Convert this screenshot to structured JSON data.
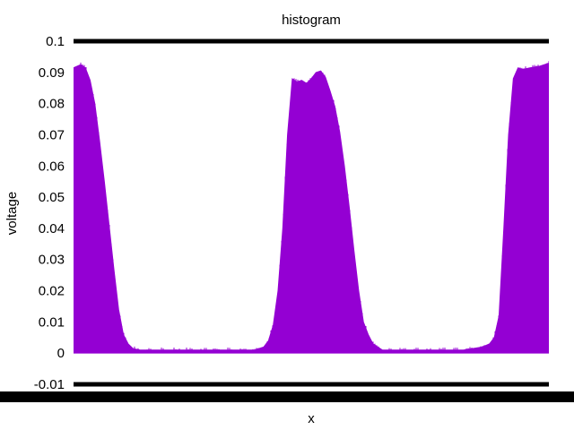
{
  "chart_data": {
    "type": "area",
    "title": "histogram",
    "xlabel": "x",
    "ylabel": "voltage",
    "ylim": [
      -0.01,
      0.1
    ],
    "xlim": [
      0,
      1
    ],
    "y_ticks": [
      "-0.01",
      "0",
      "0.01",
      "0.02",
      "0.03",
      "0.04",
      "0.05",
      "0.06",
      "0.07",
      "0.08",
      "0.09",
      "0.1"
    ],
    "grid": false,
    "legend": "none",
    "series": [
      {
        "color": "#9400d3",
        "x": [
          0.0,
          0.015,
          0.025,
          0.035,
          0.045,
          0.055,
          0.065,
          0.075,
          0.085,
          0.095,
          0.105,
          0.115,
          0.125,
          0.14,
          0.16,
          0.2,
          0.26,
          0.32,
          0.38,
          0.4,
          0.41,
          0.42,
          0.43,
          0.44,
          0.45,
          0.46,
          0.47,
          0.48,
          0.49,
          0.5,
          0.51,
          0.52,
          0.53,
          0.54,
          0.55,
          0.56,
          0.57,
          0.58,
          0.59,
          0.6,
          0.61,
          0.62,
          0.63,
          0.65,
          0.7,
          0.76,
          0.82,
          0.86,
          0.875,
          0.885,
          0.895,
          0.905,
          0.915,
          0.925,
          0.935,
          0.945,
          0.96,
          0.98,
          1.0
        ],
        "y": [
          0.0915,
          0.0925,
          0.0915,
          0.0875,
          0.08,
          0.068,
          0.055,
          0.041,
          0.027,
          0.014,
          0.006,
          0.003,
          0.0015,
          0.001,
          0.001,
          0.001,
          0.001,
          0.001,
          0.001,
          0.002,
          0.004,
          0.009,
          0.02,
          0.04,
          0.07,
          0.088,
          0.087,
          0.0875,
          0.0865,
          0.088,
          0.09,
          0.0905,
          0.0885,
          0.084,
          0.079,
          0.071,
          0.06,
          0.047,
          0.033,
          0.02,
          0.01,
          0.006,
          0.003,
          0.001,
          0.001,
          0.001,
          0.001,
          0.002,
          0.003,
          0.005,
          0.012,
          0.04,
          0.07,
          0.088,
          0.0915,
          0.091,
          0.0915,
          0.092,
          0.093
        ]
      }
    ]
  }
}
